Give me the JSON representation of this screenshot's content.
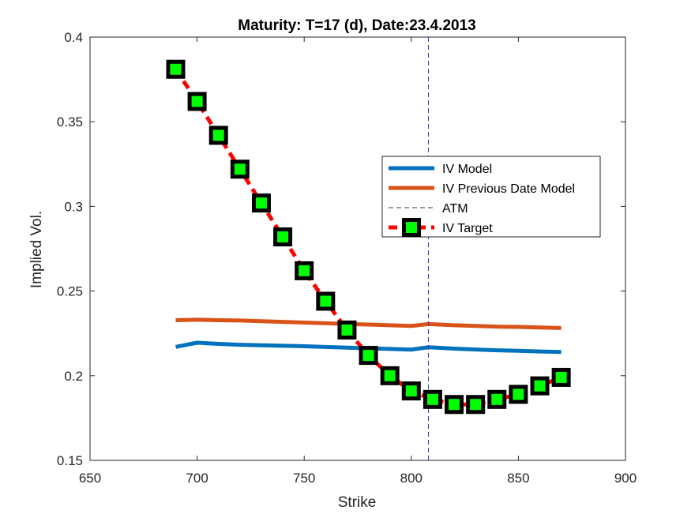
{
  "chart_data": {
    "type": "line",
    "title": "Maturity: T=17 (d), Date:23.4.2013",
    "xlabel": "Strike",
    "ylabel": "Implied Vol.",
    "xlim": [
      650,
      900
    ],
    "ylim": [
      0.15,
      0.4
    ],
    "xticks": [
      650,
      700,
      750,
      800,
      850,
      900
    ],
    "xtick_labels": [
      "650",
      "700",
      "750",
      "800",
      "850",
      "900"
    ],
    "yticks": [
      0.15,
      0.2,
      0.25,
      0.3,
      0.35,
      0.4
    ],
    "ytick_labels": [
      "0.15",
      "0.2",
      "0.25",
      "0.3",
      "0.35",
      "0.4"
    ],
    "grid": false,
    "legend_position": "upper right inside",
    "atm": 808,
    "series": [
      {
        "name": "IV Model",
        "style": "line",
        "color": "#0072BD",
        "x": [
          690,
          700,
          710,
          720,
          730,
          740,
          750,
          760,
          770,
          780,
          790,
          800,
          808,
          820,
          830,
          840,
          850,
          860,
          870
        ],
        "y": [
          0.217,
          0.2195,
          0.2188,
          0.2183,
          0.218,
          0.2177,
          0.2174,
          0.217,
          0.2166,
          0.2162,
          0.2158,
          0.2154,
          0.2168,
          0.216,
          0.2155,
          0.215,
          0.2147,
          0.2143,
          0.214
        ]
      },
      {
        "name": "IV Previous Date Model",
        "style": "line",
        "color": "#D95319",
        "x": [
          690,
          700,
          710,
          720,
          730,
          740,
          750,
          760,
          770,
          780,
          790,
          800,
          808,
          820,
          830,
          840,
          850,
          860,
          870
        ],
        "y": [
          0.2328,
          0.2331,
          0.2328,
          0.2326,
          0.2322,
          0.2318,
          0.2314,
          0.231,
          0.2306,
          0.2302,
          0.2298,
          0.2294,
          0.2305,
          0.2298,
          0.2294,
          0.229,
          0.2288,
          0.2285,
          0.2282
        ]
      },
      {
        "name": "ATM",
        "style": "dashed-vertical",
        "color": "#3333cc"
      },
      {
        "name": "IV Target",
        "style": "dashed-markers",
        "color": "#ff0000",
        "marker_face": "#00ff00",
        "marker_edge": "#000000",
        "x": [
          690,
          700,
          710,
          720,
          730,
          740,
          750,
          760,
          770,
          780,
          790,
          800,
          810,
          820,
          830,
          840,
          850,
          860,
          870
        ],
        "y": [
          0.381,
          0.362,
          0.342,
          0.322,
          0.302,
          0.282,
          0.262,
          0.244,
          0.227,
          0.212,
          0.2,
          0.191,
          0.186,
          0.183,
          0.183,
          0.186,
          0.189,
          0.194,
          0.199
        ]
      }
    ]
  }
}
